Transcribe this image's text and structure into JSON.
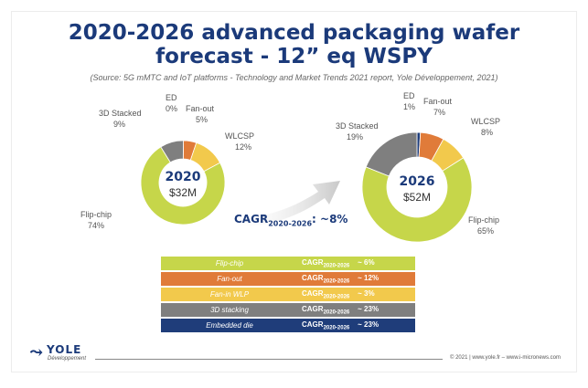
{
  "title_line1": "2020-2026 advanced packaging wafer",
  "title_line2": "forecast - 12” eq WSPY",
  "source": "(Source: 5G mMTC and IoT platforms - Technology and Market Trends 2021 report, Yole Développement, 2021)",
  "cagr_overall": {
    "prefix": "CAGR",
    "sub": "2020-2026",
    "suffix": ": ~8%"
  },
  "colors": {
    "flip_chip": "#c6d64a",
    "fan_out": "#e07b39",
    "fan_in_wlp": "#f2c94c",
    "stacked_3d": "#7f7f7f",
    "embedded_die": "#1f3d7a",
    "title": "#1b3a7a"
  },
  "chart_data": [
    {
      "type": "pie",
      "title": "2020",
      "center_value": "$32M",
      "series": [
        {
          "name": "Flip-chip",
          "value": 74,
          "label": "74%",
          "color": "#c6d64a"
        },
        {
          "name": "3D Stacked",
          "value": 9,
          "label": "9%",
          "color": "#7f7f7f"
        },
        {
          "name": "ED",
          "value": 0,
          "label": "0%",
          "color": "#1f3d7a"
        },
        {
          "name": "Fan-out",
          "value": 5,
          "label": "5%",
          "color": "#e07b39"
        },
        {
          "name": "WLCSP",
          "value": 12,
          "label": "12%",
          "color": "#f2c94c"
        }
      ]
    },
    {
      "type": "pie",
      "title": "2026",
      "center_value": "$52M",
      "series": [
        {
          "name": "Flip-chip",
          "value": 65,
          "label": "65%",
          "color": "#c6d64a"
        },
        {
          "name": "3D Stacked",
          "value": 19,
          "label": "19%",
          "color": "#7f7f7f"
        },
        {
          "name": "ED",
          "value": 1,
          "label": "1%",
          "color": "#1f3d7a"
        },
        {
          "name": "Fan-out",
          "value": 7,
          "label": "7%",
          "color": "#e07b39"
        },
        {
          "name": "WLCSP",
          "value": 8,
          "label": "8%",
          "color": "#f2c94c"
        }
      ]
    },
    {
      "type": "table",
      "rows": [
        {
          "segment": "Flip-chip",
          "cagr_label": "CAGR",
          "cagr_sub": "2020-2026",
          "cagr_value": "~ 6%",
          "color": "#c6d64a"
        },
        {
          "segment": "Fan-out",
          "cagr_label": "CAGR",
          "cagr_sub": "2020-2026",
          "cagr_value": "~ 12%",
          "color": "#e07b39"
        },
        {
          "segment": "Fan-in WLP",
          "cagr_label": "CAGR",
          "cagr_sub": "2020-2026",
          "cagr_value": "~ 3%",
          "color": "#f2c94c"
        },
        {
          "segment": "3D stacking",
          "cagr_label": "CAGR",
          "cagr_sub": "2020-2026",
          "cagr_value": "~ 23%",
          "color": "#7f7f7f"
        },
        {
          "segment": "Embedded die",
          "cagr_label": "CAGR",
          "cagr_sub": "2020-2026",
          "cagr_value": "~ 23%",
          "color": "#1f3d7a"
        }
      ]
    }
  ],
  "footer": {
    "logo_name": "YOLE",
    "logo_sub": "Développement",
    "copyright": "© 2021 | www.yole.fr – www.i-micronews.com"
  }
}
